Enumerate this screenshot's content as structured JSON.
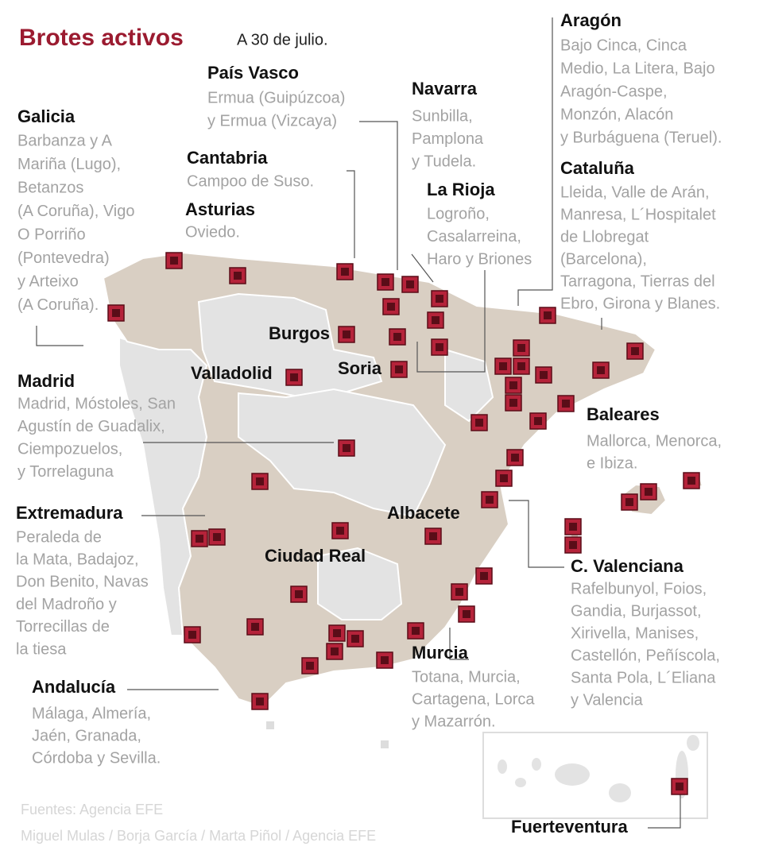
{
  "title": "Brotes activos",
  "subtitle": "A 30 de julio.",
  "labels": [
    {
      "name": "País Vasco",
      "lines": [
        "Ermua (Guipúzcoa)",
        "y Ermua (Vizcaya)"
      ]
    },
    {
      "name": "Galicia",
      "lines": [
        "Barbanza y A",
        "Mariña (Lugo),",
        "Betanzos",
        "(A Coruña), Vigo",
        "O Porriño",
        "(Pontevedra)",
        "y Arteixo",
        "(A Coruña)."
      ]
    },
    {
      "name": "Cantabria",
      "lines": [
        "Campoo de Suso."
      ]
    },
    {
      "name": "Asturias",
      "lines": [
        "Oviedo."
      ]
    },
    {
      "name": "Navarra",
      "lines": [
        "Sunbilla,",
        "Pamplona",
        "y Tudela."
      ]
    },
    {
      "name": "La Rioja",
      "lines": [
        "Logroño,",
        "Casalarreina,",
        "Haro y Briones"
      ]
    },
    {
      "name": "Aragón",
      "lines": [
        "Bajo Cinca, Cinca",
        "Medio, La Litera, Bajo",
        "Aragón-Caspe,",
        "Monzón, Alacón",
        "y Burbáguena (Teruel)."
      ]
    },
    {
      "name": "Cataluña",
      "lines": [
        "Lleida, Valle de Arán,",
        "Manresa, L´Hospitalet",
        "de Llobregat",
        "(Barcelona),",
        "Tarragona, Tierras del",
        "Ebro, Girona y Blanes."
      ]
    },
    {
      "name": "Madrid",
      "lines": [
        "Madrid, Móstoles, San",
        "Agustín de Guadalix,",
        "Ciempozuelos,",
        "y Torrelaguna"
      ]
    },
    {
      "name": "Baleares",
      "lines": [
        "Mallorca, Menorca,",
        "e Ibiza."
      ]
    },
    {
      "name": "Extremadura",
      "lines": [
        "Peraleda de",
        "la Mata, Badajoz,",
        "Don Benito, Navas",
        "del Madroño y",
        "Torrecillas de",
        "la tiesa"
      ]
    },
    {
      "name": "C. Valenciana",
      "lines": [
        "Rafelbunyol, Foios,",
        "Gandia, Burjassot,",
        "Xirivella, Manises,",
        "Castellón, Peñíscola,",
        "Santa Pola, L´Eliana",
        "y Valencia"
      ]
    },
    {
      "name": "Murcia",
      "lines": [
        "Totana, Murcia,",
        "Cartagena, Lorca",
        "y Mazarrón."
      ]
    },
    {
      "name": "Andalucía",
      "lines": [
        "Málaga, Almería,",
        "Jaén, Granada,",
        "Córdoba y Sevilla."
      ]
    }
  ],
  "places": [
    "Burgos",
    "Valladolid",
    "Soria",
    "Albacete",
    "Ciudad Real",
    "Fuerteventura"
  ],
  "sources": [
    "Fuentes: Agencia EFE",
    "Miguel Mulas / Borja García / Marta Piñol / Agencia EFE"
  ]
}
